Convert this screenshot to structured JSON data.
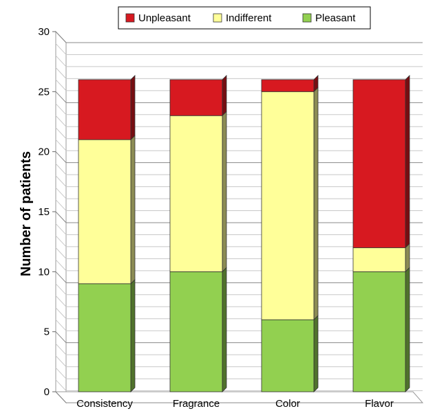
{
  "chart_data": {
    "type": "bar",
    "stacked": true,
    "style": "3d",
    "categories": [
      "Consistency",
      "Fragrance",
      "Color",
      "Flavor"
    ],
    "series": [
      {
        "name": "Pleasant",
        "values": [
          9,
          10,
          6,
          10
        ],
        "color": "#92d050"
      },
      {
        "name": "Indifferent",
        "values": [
          12,
          13,
          19,
          2
        ],
        "color": "#ffff99"
      },
      {
        "name": "Unpleasant",
        "values": [
          5,
          3,
          1,
          14
        ],
        "color": "#d71920"
      }
    ],
    "legend_order": [
      "Unpleasant",
      "Indifferent",
      "Pleasant"
    ],
    "title": "",
    "xlabel": "",
    "ylabel": "Number of patients",
    "ylim": [
      0,
      30
    ],
    "yticks": [
      0,
      5,
      10,
      15,
      20,
      25,
      30
    ],
    "grid": true,
    "legend_position": "top"
  }
}
